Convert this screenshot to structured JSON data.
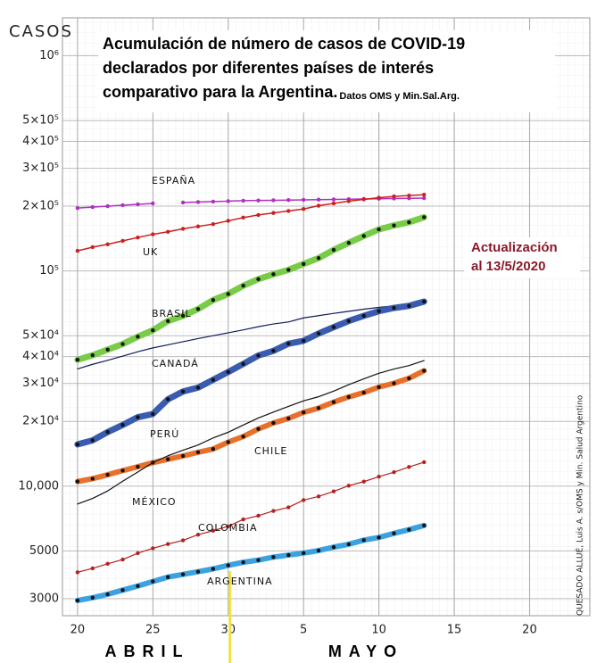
{
  "chart_data": {
    "type": "line",
    "title": [
      "Acumulación de número de casos de COVID-19",
      "declarados por diferentes países de interés",
      "comparativo para la Argentina."
    ],
    "subtitle": "Datos OMS y Min.Sal.Arg.",
    "annotation": [
      "Actualización",
      "al 13/5/2020"
    ],
    "credit": "QUESADO ALLUÉ, Luis A. s/OMS y Min. Salud Argentino",
    "y_label": "CASOS",
    "months": [
      "ABRIL",
      "MAYO"
    ],
    "log_y": true,
    "grid": true,
    "x": [
      0,
      1,
      2,
      3,
      4,
      5,
      6,
      7,
      8,
      9,
      10,
      11,
      12,
      13,
      14,
      15,
      16,
      17,
      18,
      19,
      20,
      21,
      22,
      23
    ],
    "xlim": [
      -1,
      34
    ],
    "xticks": [
      {
        "value": 0,
        "label": "20"
      },
      {
        "value": 5,
        "label": "25"
      },
      {
        "value": 10,
        "label": "30"
      },
      {
        "value": 15,
        "label": "5"
      },
      {
        "value": 20,
        "label": "10"
      },
      {
        "value": 25,
        "label": "15"
      },
      {
        "value": 30,
        "label": "20"
      }
    ],
    "ylim": [
      2500,
      1500000
    ],
    "yticks": [
      {
        "value": 1000000,
        "label": "10⁶"
      },
      {
        "value": 500000,
        "label": "5×10⁵"
      },
      {
        "value": 400000,
        "label": "4×10⁵"
      },
      {
        "value": 300000,
        "label": "3×10⁵"
      },
      {
        "value": 200000,
        "label": "2×10⁵"
      },
      {
        "value": 100000,
        "label": "10⁵"
      },
      {
        "value": 50000,
        "label": "5×10⁴"
      },
      {
        "value": 40000,
        "label": "4×10⁴"
      },
      {
        "value": 30000,
        "label": "3×10⁴"
      },
      {
        "value": 20000,
        "label": "2×10⁴"
      },
      {
        "value": 10000,
        "label": "10,000"
      },
      5000,
      3000
    ],
    "series": [
      {
        "name": "ESPAÑA",
        "color": "#b030c0",
        "values": [
          196000,
          198000,
          200000,
          202000,
          204000,
          206000,
          null,
          208000,
          209000,
          210000,
          211000,
          212000,
          212500,
          213000,
          213500,
          214000,
          214500,
          215000,
          215500,
          216000,
          216500,
          217000,
          217500,
          218000
        ]
      },
      {
        "name": "UK",
        "color": "#cc2020",
        "values": [
          124000,
          129000,
          133000,
          138000,
          143000,
          148000,
          152000,
          157000,
          161000,
          165000,
          171000,
          177000,
          182000,
          186000,
          190000,
          194000,
          201000,
          206000,
          211000,
          215000,
          219000,
          222000,
          224000,
          226000
        ]
      },
      {
        "name": "BRASIL",
        "color": "#78cc48",
        "values": [
          38654,
          40581,
          43079,
          45757,
          49492,
          52995,
          58509,
          61888,
          66501,
          73235,
          78162,
          85380,
          91589,
          96559,
          101147,
          107780,
          114715,
          125218,
          135106,
          145328,
          155939,
          162699,
          168331,
          177589
        ]
      },
      {
        "name": "CANADÁ",
        "color": "#101c5a",
        "values": [
          35056,
          36829,
          38422,
          40190,
          42110,
          43888,
          45354,
          46895,
          48500,
          50026,
          51597,
          53236,
          55061,
          56714,
          57926,
          60504,
          61957,
          63496,
          64922,
          66434,
          67674,
          68848,
          69981,
          71264
        ]
      },
      {
        "name": "PERÚ",
        "color": "#3a5cb0",
        "values": [
          15628,
          16325,
          17837,
          19250,
          20914,
          21648,
          25331,
          27517,
          28699,
          31190,
          33931,
          36976,
          40459,
          42534,
          45928,
          47372,
          51189,
          54817,
          58526,
          61847,
          65015,
          67307,
          68822,
          72059
        ]
      },
      {
        "name": "CHILE",
        "color": "#e8702a",
        "values": [
          10507,
          10832,
          11296,
          11812,
          12306,
          12858,
          13331,
          13813,
          14365,
          14885,
          16023,
          17008,
          18435,
          19663,
          20643,
          22016,
          23048,
          24581,
          25972,
          27219,
          28866,
          30063,
          31721,
          34381
        ]
      },
      {
        "name": "MÉXICO",
        "color": "#111111",
        "values": [
          8261,
          8772,
          9501,
          10544,
          11633,
          12872,
          13842,
          14677,
          15529,
          16752,
          17799,
          19224,
          20739,
          22088,
          23471,
          24905,
          26025,
          27634,
          29616,
          31522,
          33460,
          35022,
          36327,
          38324
        ]
      },
      {
        "name": "COLOMBIA",
        "color": "#b42222",
        "values": [
          3977,
          4149,
          4356,
          4561,
          4881,
          5142,
          5379,
          5597,
          5949,
          6207,
          6507,
          7006,
          7285,
          7668,
          7973,
          8613,
          8959,
          9456,
          10051,
          10495,
          11063,
          11613,
          12272,
          12930
        ]
      },
      {
        "name": "ARGENTINA",
        "color": "#3aa2e0",
        "values": [
          2941,
          3031,
          3144,
          3288,
          3435,
          3607,
          3780,
          3892,
          4003,
          4127,
          4285,
          4428,
          4532,
          4681,
          4783,
          4887,
          5020,
          5208,
          5371,
          5611,
          5776,
          6034,
          6278,
          6563
        ]
      }
    ]
  }
}
